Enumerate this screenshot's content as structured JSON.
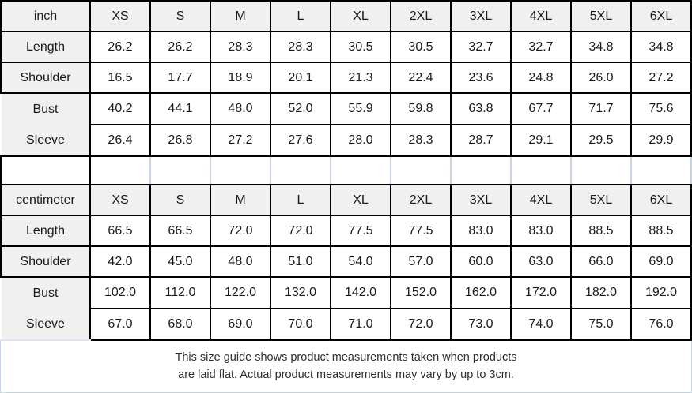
{
  "chart_data": [
    {
      "type": "table",
      "unit": "inch",
      "columns": [
        "inch",
        "XS",
        "S",
        "M",
        "L",
        "XL",
        "2XL",
        "3XL",
        "4XL",
        "5XL",
        "6XL"
      ],
      "rows": [
        {
          "label": "Length",
          "values": [
            "26.2",
            "26.2",
            "28.3",
            "28.3",
            "30.5",
            "30.5",
            "32.7",
            "32.7",
            "34.8",
            "34.8"
          ]
        },
        {
          "label": "Shoulder",
          "values": [
            "16.5",
            "17.7",
            "18.9",
            "20.1",
            "21.3",
            "22.4",
            "23.6",
            "24.8",
            "26.0",
            "27.2"
          ]
        },
        {
          "label": "Bust",
          "values": [
            "40.2",
            "44.1",
            "48.0",
            "52.0",
            "55.9",
            "59.8",
            "63.8",
            "67.7",
            "71.7",
            "75.6"
          ]
        },
        {
          "label": "Sleeve",
          "values": [
            "26.4",
            "26.8",
            "27.2",
            "27.6",
            "28.0",
            "28.3",
            "28.7",
            "29.1",
            "29.5",
            "29.9"
          ]
        }
      ]
    },
    {
      "type": "table",
      "unit": "centimeter",
      "columns": [
        "centimeter",
        "XS",
        "S",
        "M",
        "L",
        "XL",
        "2XL",
        "3XL",
        "4XL",
        "5XL",
        "6XL"
      ],
      "rows": [
        {
          "label": "Length",
          "values": [
            "66.5",
            "66.5",
            "72.0",
            "72.0",
            "77.5",
            "77.5",
            "83.0",
            "83.0",
            "88.5",
            "88.5"
          ]
        },
        {
          "label": "Shoulder",
          "values": [
            "42.0",
            "45.0",
            "48.0",
            "51.0",
            "54.0",
            "57.0",
            "60.0",
            "63.0",
            "66.0",
            "69.0"
          ]
        },
        {
          "label": "Bust",
          "values": [
            "102.0",
            "112.0",
            "122.0",
            "132.0",
            "142.0",
            "152.0",
            "162.0",
            "172.0",
            "182.0",
            "192.0"
          ]
        },
        {
          "label": "Sleeve",
          "values": [
            "67.0",
            "68.0",
            "69.0",
            "70.0",
            "71.0",
            "72.0",
            "73.0",
            "74.0",
            "75.0",
            "76.0"
          ]
        }
      ]
    }
  ],
  "footer": {
    "line1": "This size guide shows product measurements taken when products",
    "line2": "are laid flat. Actual product measurements may vary by up to 3cm."
  },
  "colors": {
    "header_bg": "#f0f0f0",
    "border_dark": "#000000",
    "border_light": "#c9d3e3",
    "text": "#1a1a1a"
  }
}
